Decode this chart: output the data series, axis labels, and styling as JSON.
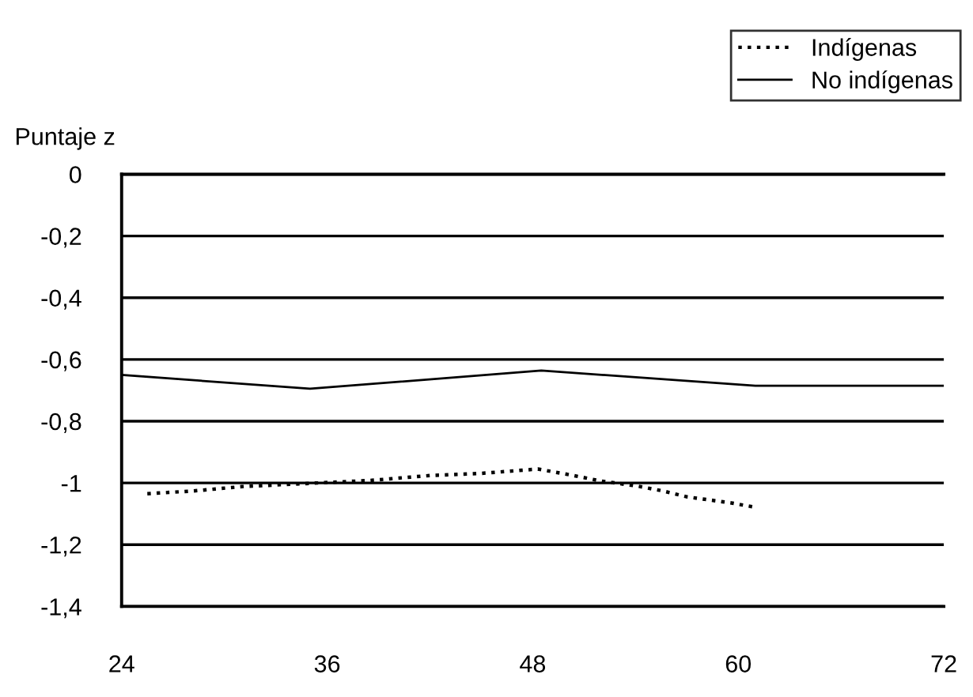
{
  "chart_data": {
    "type": "line",
    "ylabel": "Puntaje z",
    "xlim": [
      24,
      72
    ],
    "xticks": [
      24,
      36,
      48,
      60,
      72
    ],
    "ylim": [
      -1.4,
      0
    ],
    "yticks": [
      {
        "value": 0,
        "label": "0"
      },
      {
        "value": -0.2,
        "label": "-0,2"
      },
      {
        "value": -0.4,
        "label": "-0,4"
      },
      {
        "value": -0.6,
        "label": "-0,6"
      },
      {
        "value": -0.8,
        "label": "-0,8"
      },
      {
        "value": -1,
        "label": "-1"
      },
      {
        "value": -1.2,
        "label": "-1,2"
      },
      {
        "value": -1.4,
        "label": "-1,4"
      }
    ],
    "grid": "y",
    "legend": "top right",
    "series": [
      {
        "name": "Indígenas",
        "color": "#000000",
        "line_style": "dotted",
        "x": [
          25.5,
          28.2,
          31,
          34,
          38.5,
          42,
          45,
          48.3,
          50.2,
          52,
          54.1,
          55.6,
          57,
          59.6,
          61
        ],
        "values": [
          -1.035,
          -1.026,
          -1.012,
          -1.004,
          -0.992,
          -0.976,
          -0.969,
          -0.955,
          -0.974,
          -0.994,
          -1.01,
          -1.026,
          -1.045,
          -1.065,
          -1.079
        ]
      },
      {
        "name": "No indígenas",
        "color": "#000000",
        "line_style": "solid",
        "x": [
          24,
          35,
          48.5,
          61,
          72
        ],
        "values": [
          -0.65,
          -0.695,
          -0.636,
          -0.685,
          -0.685
        ]
      }
    ]
  }
}
